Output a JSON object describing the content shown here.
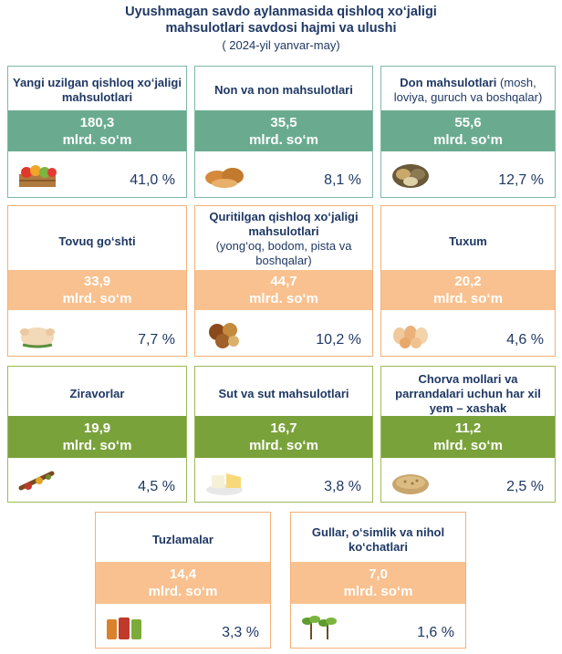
{
  "header": {
    "title_line1": "Uyushmagan savdo aylanmasida qishloq xo‘jaligi",
    "title_line2": "mahsulotlari savdosi hajmi va ulushi",
    "subtitle": "( 2024-yil yanvar-may)"
  },
  "unit": "mlrd. so‘m",
  "colors": {
    "green": "#6aab90",
    "orange": "#f9c18f",
    "olive": "#7aa23b",
    "text": "#1f3864"
  },
  "cards": [
    {
      "label_main": "Yangi uzilgan  qishloq xo‘jaligi mahsulotlari",
      "label_sub": "",
      "value": "180,3",
      "share": "41,0 %",
      "icon": "fruit-crate-icon"
    },
    {
      "label_main": "Non va non mahsulotlari",
      "label_sub": "",
      "value": "35,5",
      "share": "8,1 %",
      "icon": "bread-icon"
    },
    {
      "label_main": "Don mahsulotlari",
      "label_sub": " (mosh, loviya, guruch va boshqalar)",
      "value": "55,6",
      "share": "12,7 %",
      "icon": "grain-icon"
    },
    {
      "label_main": "Tovuq go‘shti",
      "label_sub": "",
      "value": "33,9",
      "share": "7,7 %",
      "icon": "chicken-icon"
    },
    {
      "label_main": "Quritilgan qishloq xo‘jaligi mahsulotlari",
      "label_sub": "(yong‘oq, bodom, pista va boshqalar)",
      "value": "44,7",
      "share": "10,2 %",
      "icon": "nuts-icon"
    },
    {
      "label_main": "Tuxum",
      "label_sub": "",
      "value": "20,2",
      "share": "4,6 %",
      "icon": "eggs-icon"
    },
    {
      "label_main": "Ziravorlar",
      "label_sub": "",
      "value": "19,9",
      "share": "4,5 %",
      "icon": "spices-icon"
    },
    {
      "label_main": "Sut va sut mahsulotlari",
      "label_sub": "",
      "value": "16,7",
      "share": "3,8 %",
      "icon": "dairy-icon"
    },
    {
      "label_main": "Chorva mollari va parrandalari uchun har xil yem – xashak",
      "label_sub": "",
      "value": "11,2",
      "share": "2,5 %",
      "icon": "feed-icon"
    },
    {
      "label_main": "Tuzlamalar",
      "label_sub": "",
      "value": "14,4",
      "share": "3,3 %",
      "icon": "pickles-icon"
    },
    {
      "label_main": "Gullar, o‘simlik va nihol ko‘chatlari",
      "label_sub": "",
      "value": "7,0",
      "share": "1,6 %",
      "icon": "seedlings-icon"
    }
  ]
}
